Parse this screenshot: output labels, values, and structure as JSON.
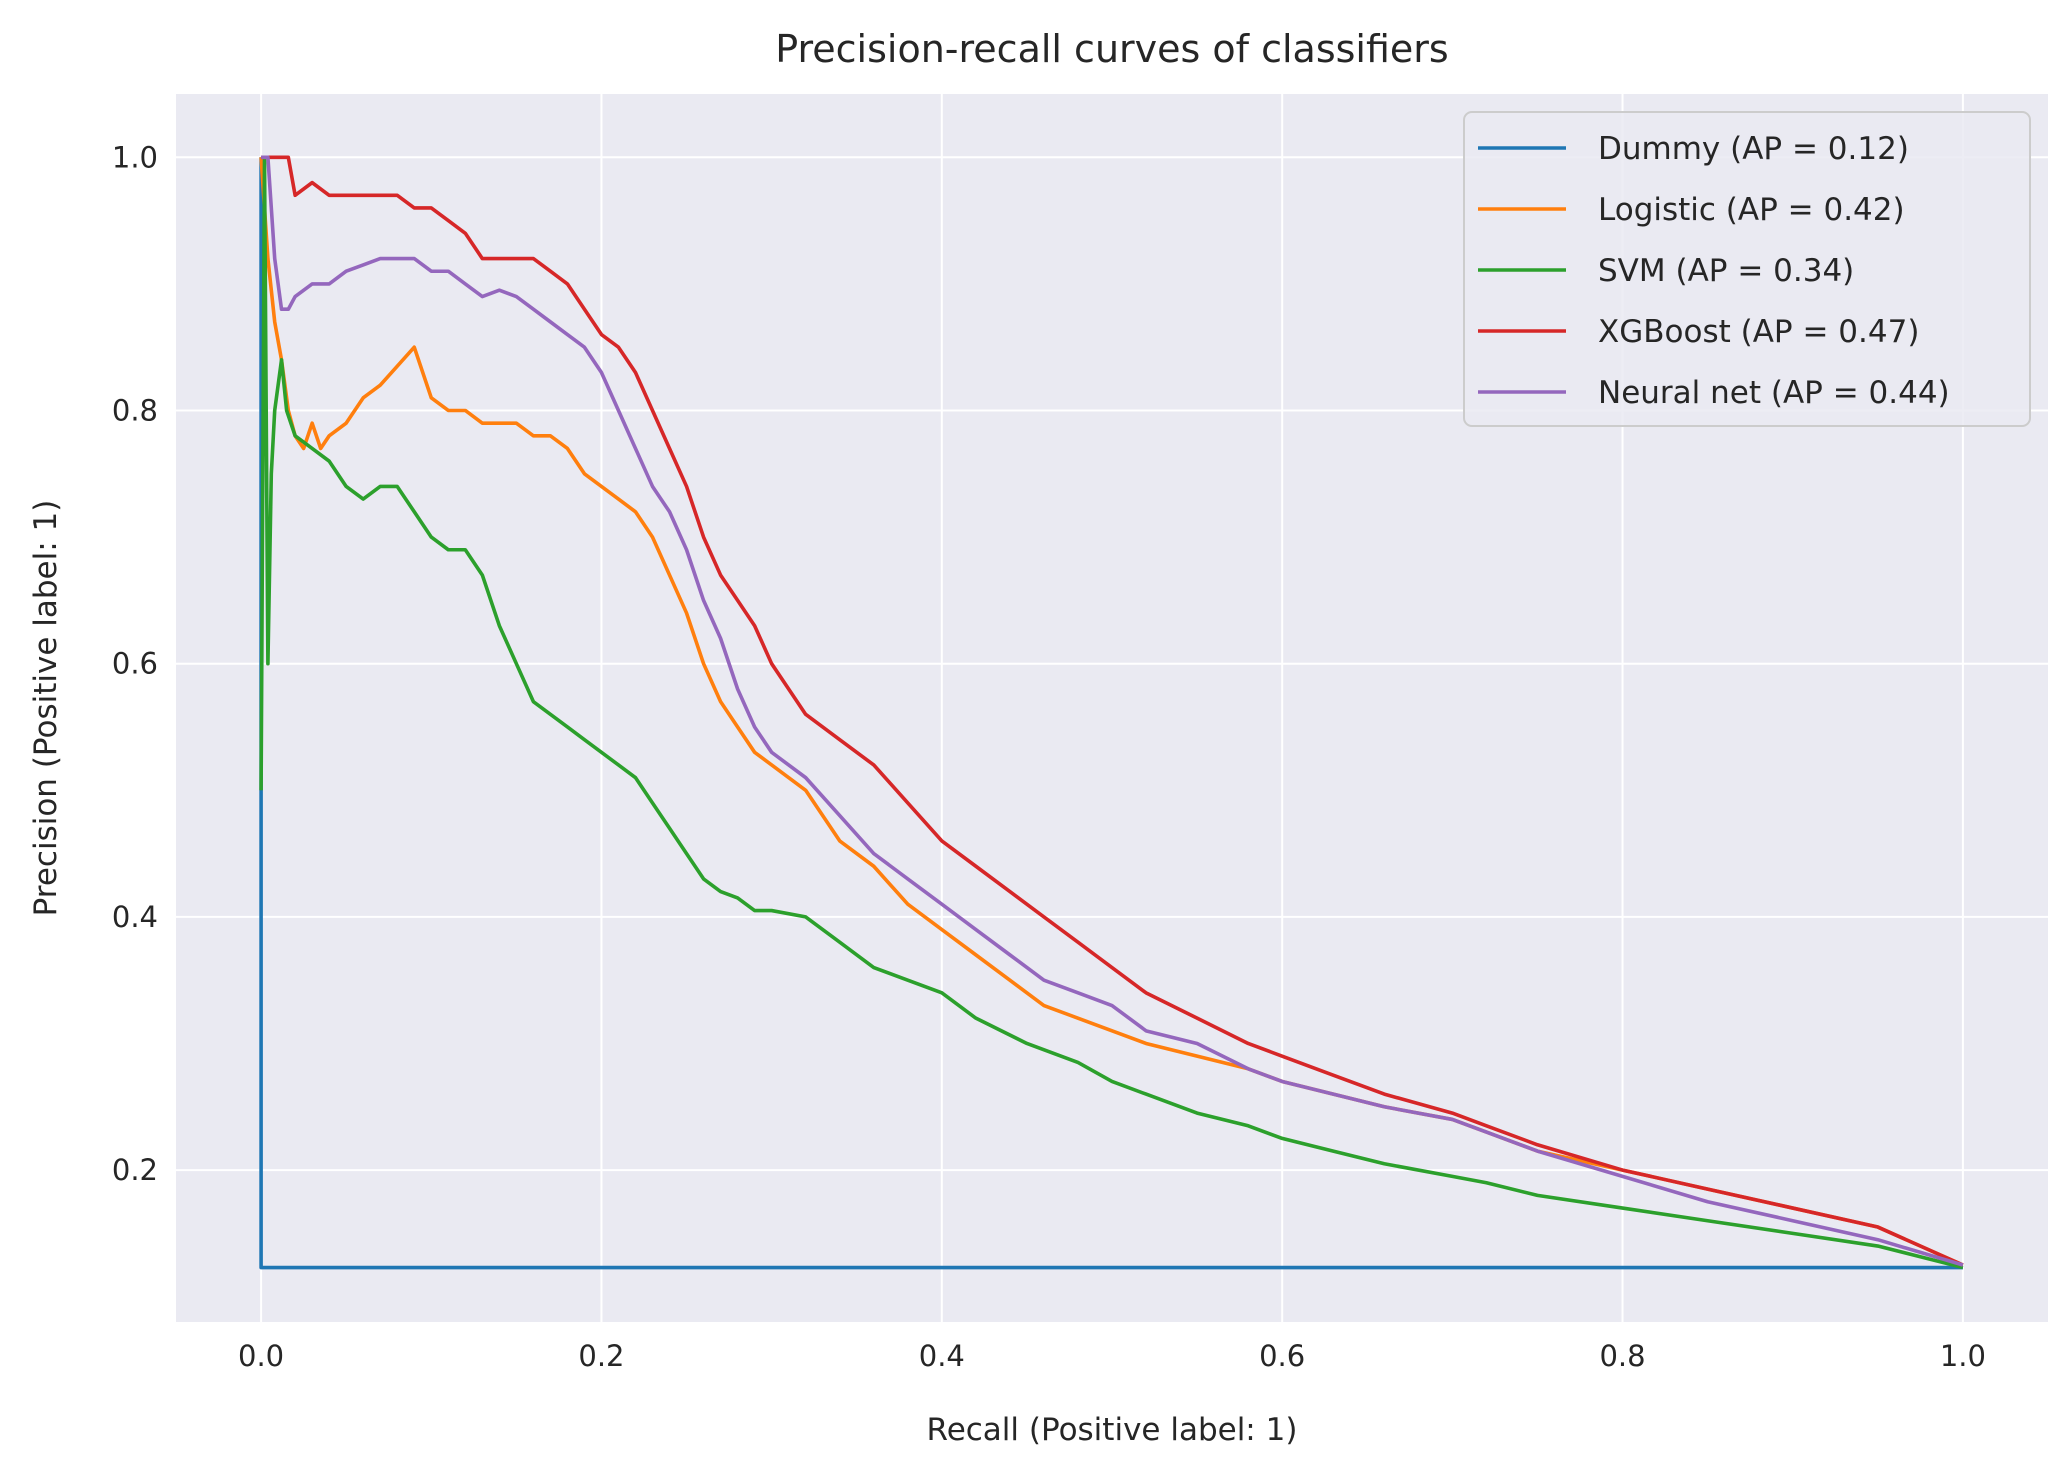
{
  "chart_data": {
    "type": "line",
    "title": "Precision-recall curves of classifiers",
    "xlabel": "Recall (Positive label: 1)",
    "ylabel": "Precision (Positive label: 1)",
    "xlim": [
      -0.05,
      1.05
    ],
    "ylim": [
      0.08,
      1.05
    ],
    "x_ticks": [
      0.0,
      0.2,
      0.4,
      0.6,
      0.8,
      1.0
    ],
    "x_tick_labels": [
      "0.0",
      "0.2",
      "0.4",
      "0.6",
      "0.8",
      "1.0"
    ],
    "y_ticks": [
      0.2,
      0.4,
      0.6,
      0.8,
      1.0
    ],
    "y_tick_labels": [
      "0.2",
      "0.4",
      "0.6",
      "0.8",
      "1.0"
    ],
    "grid": true,
    "legend_position": "top-right",
    "background": "#eaeaf2",
    "series": [
      {
        "name": "Dummy (AP = 0.12)",
        "color": "#1f77b4",
        "x": [
          0.0,
          0.0,
          0.0,
          1.0
        ],
        "y": [
          1.0,
          0.5,
          0.123,
          0.123
        ]
      },
      {
        "name": "Logistic (AP = 0.42)",
        "color": "#ff7f0e",
        "x": [
          0.0,
          0.004,
          0.008,
          0.012,
          0.016,
          0.02,
          0.025,
          0.03,
          0.035,
          0.04,
          0.05,
          0.06,
          0.07,
          0.08,
          0.09,
          0.1,
          0.11,
          0.12,
          0.13,
          0.14,
          0.15,
          0.16,
          0.17,
          0.18,
          0.19,
          0.2,
          0.21,
          0.22,
          0.23,
          0.24,
          0.25,
          0.26,
          0.27,
          0.28,
          0.29,
          0.3,
          0.32,
          0.34,
          0.36,
          0.38,
          0.4,
          0.42,
          0.44,
          0.46,
          0.48,
          0.5,
          0.52,
          0.55,
          0.58,
          0.6,
          0.63,
          0.66,
          0.7,
          0.72,
          0.75,
          0.8,
          0.85,
          0.9,
          0.95,
          1.0
        ],
        "y": [
          1.0,
          0.92,
          0.87,
          0.84,
          0.8,
          0.78,
          0.77,
          0.79,
          0.77,
          0.78,
          0.79,
          0.81,
          0.82,
          0.835,
          0.85,
          0.81,
          0.8,
          0.8,
          0.79,
          0.79,
          0.79,
          0.78,
          0.78,
          0.77,
          0.75,
          0.74,
          0.73,
          0.72,
          0.7,
          0.67,
          0.64,
          0.6,
          0.57,
          0.55,
          0.53,
          0.52,
          0.5,
          0.46,
          0.44,
          0.41,
          0.39,
          0.37,
          0.35,
          0.33,
          0.32,
          0.31,
          0.3,
          0.29,
          0.28,
          0.27,
          0.26,
          0.25,
          0.24,
          0.23,
          0.215,
          0.2,
          0.185,
          0.17,
          0.155,
          0.125
        ]
      },
      {
        "name": "SVM (AP = 0.34)",
        "color": "#2ca02c",
        "x": [
          0.0,
          0.002,
          0.004,
          0.006,
          0.008,
          0.01,
          0.012,
          0.015,
          0.02,
          0.03,
          0.04,
          0.05,
          0.06,
          0.07,
          0.08,
          0.09,
          0.1,
          0.11,
          0.12,
          0.13,
          0.14,
          0.15,
          0.16,
          0.17,
          0.18,
          0.19,
          0.2,
          0.21,
          0.22,
          0.23,
          0.24,
          0.25,
          0.26,
          0.27,
          0.28,
          0.29,
          0.3,
          0.32,
          0.34,
          0.36,
          0.38,
          0.4,
          0.42,
          0.45,
          0.48,
          0.5,
          0.52,
          0.55,
          0.58,
          0.6,
          0.63,
          0.66,
          0.7,
          0.72,
          0.75,
          0.8,
          0.85,
          0.9,
          0.95,
          1.0
        ],
        "y": [
          0.5,
          1.0,
          0.6,
          0.75,
          0.8,
          0.82,
          0.84,
          0.8,
          0.78,
          0.77,
          0.76,
          0.74,
          0.73,
          0.74,
          0.74,
          0.72,
          0.7,
          0.69,
          0.69,
          0.67,
          0.63,
          0.6,
          0.57,
          0.56,
          0.55,
          0.54,
          0.53,
          0.52,
          0.51,
          0.49,
          0.47,
          0.45,
          0.43,
          0.42,
          0.415,
          0.405,
          0.405,
          0.4,
          0.38,
          0.36,
          0.35,
          0.34,
          0.32,
          0.3,
          0.285,
          0.27,
          0.26,
          0.245,
          0.235,
          0.225,
          0.215,
          0.205,
          0.195,
          0.19,
          0.18,
          0.17,
          0.16,
          0.15,
          0.14,
          0.123
        ]
      },
      {
        "name": "XGBoost (AP = 0.47)",
        "color": "#d62728",
        "x": [
          0.0,
          0.004,
          0.008,
          0.012,
          0.016,
          0.02,
          0.03,
          0.04,
          0.05,
          0.06,
          0.07,
          0.08,
          0.09,
          0.1,
          0.11,
          0.12,
          0.13,
          0.14,
          0.15,
          0.16,
          0.17,
          0.18,
          0.19,
          0.2,
          0.21,
          0.22,
          0.23,
          0.24,
          0.25,
          0.26,
          0.27,
          0.28,
          0.29,
          0.3,
          0.31,
          0.32,
          0.34,
          0.36,
          0.38,
          0.4,
          0.42,
          0.44,
          0.46,
          0.48,
          0.5,
          0.52,
          0.55,
          0.58,
          0.6,
          0.63,
          0.66,
          0.7,
          0.72,
          0.75,
          0.8,
          0.85,
          0.9,
          0.95,
          1.0
        ],
        "y": [
          1.0,
          1.0,
          1.0,
          1.0,
          1.0,
          0.97,
          0.98,
          0.97,
          0.97,
          0.97,
          0.97,
          0.97,
          0.96,
          0.96,
          0.95,
          0.94,
          0.92,
          0.92,
          0.92,
          0.92,
          0.91,
          0.9,
          0.88,
          0.86,
          0.85,
          0.83,
          0.8,
          0.77,
          0.74,
          0.7,
          0.67,
          0.65,
          0.63,
          0.6,
          0.58,
          0.56,
          0.54,
          0.52,
          0.49,
          0.46,
          0.44,
          0.42,
          0.4,
          0.38,
          0.36,
          0.34,
          0.32,
          0.3,
          0.29,
          0.275,
          0.26,
          0.245,
          0.235,
          0.22,
          0.2,
          0.185,
          0.17,
          0.155,
          0.125
        ]
      },
      {
        "name": "Neural net (AP = 0.44)",
        "color": "#9467bd",
        "x": [
          0.0,
          0.004,
          0.008,
          0.012,
          0.016,
          0.02,
          0.03,
          0.04,
          0.05,
          0.06,
          0.07,
          0.08,
          0.09,
          0.1,
          0.11,
          0.12,
          0.13,
          0.14,
          0.15,
          0.16,
          0.17,
          0.18,
          0.19,
          0.2,
          0.21,
          0.22,
          0.23,
          0.24,
          0.25,
          0.26,
          0.27,
          0.28,
          0.29,
          0.3,
          0.32,
          0.34,
          0.36,
          0.38,
          0.4,
          0.42,
          0.44,
          0.46,
          0.48,
          0.5,
          0.52,
          0.55,
          0.58,
          0.6,
          0.63,
          0.66,
          0.7,
          0.72,
          0.75,
          0.8,
          0.85,
          0.9,
          0.95,
          1.0
        ],
        "y": [
          1.0,
          1.0,
          0.92,
          0.88,
          0.88,
          0.89,
          0.9,
          0.9,
          0.91,
          0.915,
          0.92,
          0.92,
          0.92,
          0.91,
          0.91,
          0.9,
          0.89,
          0.895,
          0.89,
          0.88,
          0.87,
          0.86,
          0.85,
          0.83,
          0.8,
          0.77,
          0.74,
          0.72,
          0.69,
          0.65,
          0.62,
          0.58,
          0.55,
          0.53,
          0.51,
          0.48,
          0.45,
          0.43,
          0.41,
          0.39,
          0.37,
          0.35,
          0.34,
          0.33,
          0.31,
          0.3,
          0.28,
          0.27,
          0.26,
          0.25,
          0.24,
          0.23,
          0.215,
          0.195,
          0.175,
          0.16,
          0.145,
          0.125
        ]
      }
    ]
  }
}
